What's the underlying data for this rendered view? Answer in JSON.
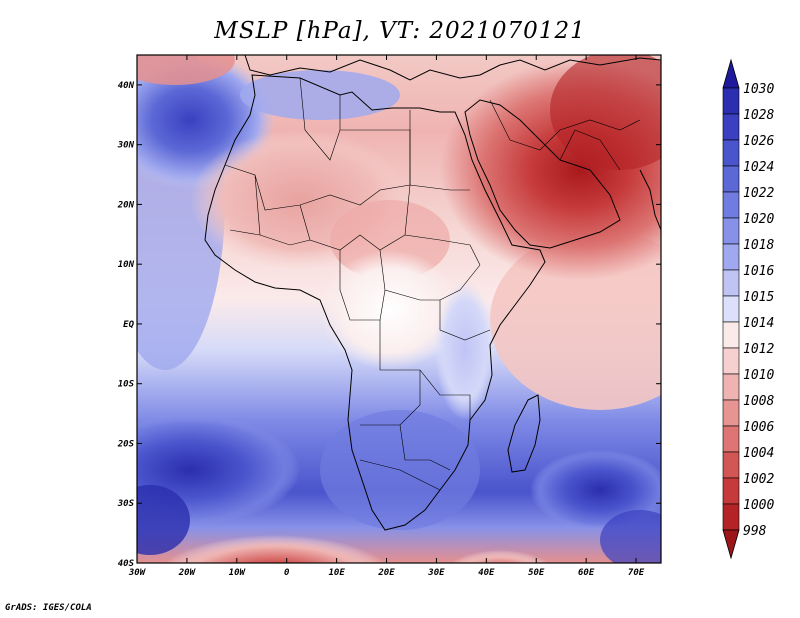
{
  "title": "MSLP [hPa], VT: 2021070121",
  "footer": "GrADS: IGES/COLA",
  "map": {
    "projection": "latlon",
    "lon_range": [
      -30,
      75
    ],
    "lat_range": [
      -40,
      45
    ],
    "lon_ticks": [
      "30W",
      "20W",
      "10W",
      "0",
      "10E",
      "20E",
      "30E",
      "40E",
      "50E",
      "60E",
      "70E"
    ],
    "lat_ticks": [
      "40N",
      "30N",
      "20N",
      "10N",
      "EQ",
      "10S",
      "20S",
      "30S",
      "40S"
    ],
    "features": [
      "country-boundaries",
      "coastlines"
    ]
  },
  "colorbar": {
    "orientation": "vertical",
    "labels": [
      "1030",
      "1028",
      "1026",
      "1024",
      "1022",
      "1020",
      "1018",
      "1016",
      "1015",
      "1014",
      "1012",
      "1010",
      "1008",
      "1006",
      "1004",
      "1002",
      "1000",
      "998"
    ],
    "colors": [
      "#1f1a9c",
      "#2b2eae",
      "#3a40c0",
      "#4a54cc",
      "#5c68d6",
      "#717ce0",
      "#8791e8",
      "#a0a9ef",
      "#bfc4f5",
      "#dde0fa",
      "#fbeaea",
      "#f6d0cf",
      "#efb4b2",
      "#e69593",
      "#dc7573",
      "#d15654",
      "#c63a3b",
      "#b42326",
      "#9c1518"
    ]
  }
}
